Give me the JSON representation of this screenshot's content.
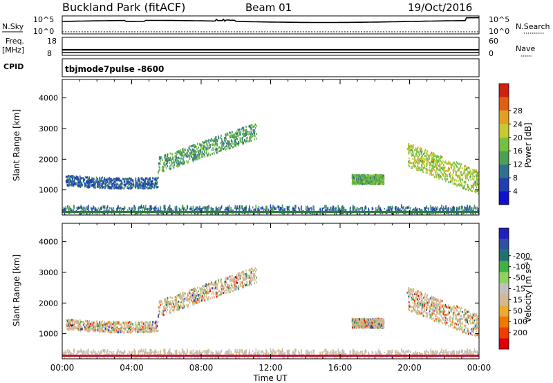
{
  "header": {
    "site": "Buckland Park (fitACF)",
    "beam": "Beam 01",
    "date": "19/Oct/2016"
  },
  "status": {
    "nsky_label": "N.Sky",
    "nsearch_label": "N.Search",
    "left_top_tick": "10^5",
    "left_bottom_tick": "10^0",
    "right_top_tick": "10^5",
    "right_bottom_tick": "10^0",
    "freq_label": "Freq.",
    "freq_unit": "[MHz]",
    "freq_top": "18",
    "freq_bottom": "8",
    "nave_top": "60",
    "nave_bottom": "0",
    "nave_label": "Nave",
    "cpid_label": "CPID",
    "cpid_value": "tbjmode7pulse -8600"
  },
  "chart_data": [
    {
      "type": "heatmap",
      "quantity": "Power",
      "ylabel": "Slant Range [km]",
      "colorbar_label": "Power [dB]",
      "xlim": [
        "00:00",
        "24:00"
      ],
      "ylim": [
        180,
        4600
      ],
      "yticks": [
        1000,
        2000,
        3000,
        4000
      ],
      "colorbar_ticks": [
        "4",
        "8",
        "12",
        "16",
        "20",
        "24",
        "28"
      ],
      "colorbar_colors": [
        "#1010d0",
        "#2040b0",
        "#30708c",
        "#4c9e50",
        "#74c040",
        "#c8c830",
        "#e0a020",
        "#e06010",
        "#d02010"
      ],
      "echo_regions": [
        {
          "name": "ground scatter near",
          "time_start": "00:00",
          "time_end": "24:00",
          "range_km": [
            180,
            400
          ],
          "power_db": 8
        },
        {
          "name": "morning arc",
          "time_start": "00:10",
          "time_end": "05:30",
          "range_km": [
            1000,
            1500
          ],
          "power_db": 6
        },
        {
          "name": "morning rise",
          "time_start": "05:30",
          "time_end": "11:10",
          "range_km": [
            1500,
            3000
          ],
          "power_db": 12
        },
        {
          "name": "afternoon patch",
          "time_start": "16:40",
          "time_end": "18:30",
          "range_km": [
            1150,
            1450
          ],
          "power_db": 14
        },
        {
          "name": "evening band",
          "time_start": "19:50",
          "time_end": "24:00",
          "range_km": [
            800,
            2500
          ],
          "power_db": 18
        }
      ]
    },
    {
      "type": "heatmap",
      "quantity": "Velocity",
      "ylabel": "Slant Range [km]",
      "colorbar_label": "Velocity [m s⁻¹]",
      "xlabel": "Time UT",
      "xticks": [
        "00:00",
        "04:00",
        "08:00",
        "12:00",
        "16:00",
        "20:00",
        "00:00"
      ],
      "xlim": [
        "00:00",
        "24:00"
      ],
      "ylim": [
        180,
        4600
      ],
      "yticks": [
        1000,
        2000,
        3000,
        4000
      ],
      "colorbar_ticks": [
        "-200",
        "-100",
        "-50",
        "-15",
        "15",
        "50",
        "100",
        "200"
      ],
      "colorbar_colors": [
        "#e00000",
        "#f03c00",
        "#f07800",
        "#f0a830",
        "#d0b890",
        "#c0c0c0",
        "#90d060",
        "#40b040",
        "#207070",
        "#3050a0",
        "#2020c0"
      ]
    }
  ]
}
